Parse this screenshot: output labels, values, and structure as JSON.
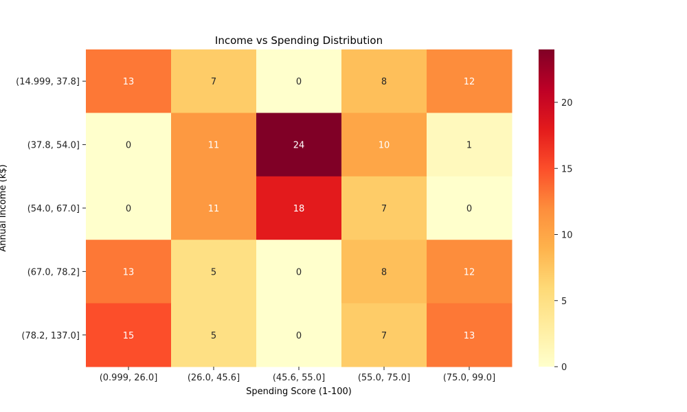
{
  "chart_data": {
    "type": "heatmap",
    "title": "Income vs Spending Distribution",
    "xlabel": "Spending Score (1-100)",
    "ylabel": "Annual Income (k$)",
    "x_categories": [
      "(0.999, 26.0]",
      "(26.0, 45.6]",
      "(45.6, 55.0]",
      "(55.0, 75.0]",
      "(75.0, 99.0]"
    ],
    "y_categories": [
      "(14.999, 37.8]",
      "(37.8, 54.0]",
      "(54.0, 67.0]",
      "(67.0, 78.2]",
      "(78.2, 137.0]"
    ],
    "values": [
      [
        13,
        7,
        0,
        8,
        12
      ],
      [
        0,
        11,
        24,
        10,
        1
      ],
      [
        0,
        11,
        18,
        7,
        0
      ],
      [
        13,
        5,
        0,
        8,
        12
      ],
      [
        15,
        5,
        0,
        7,
        13
      ]
    ],
    "colormap": "YlOrRd",
    "colorbar": {
      "min": 0,
      "max": 24,
      "ticks": [
        0,
        5,
        10,
        15,
        20
      ]
    },
    "annotations": true,
    "grid": false
  }
}
